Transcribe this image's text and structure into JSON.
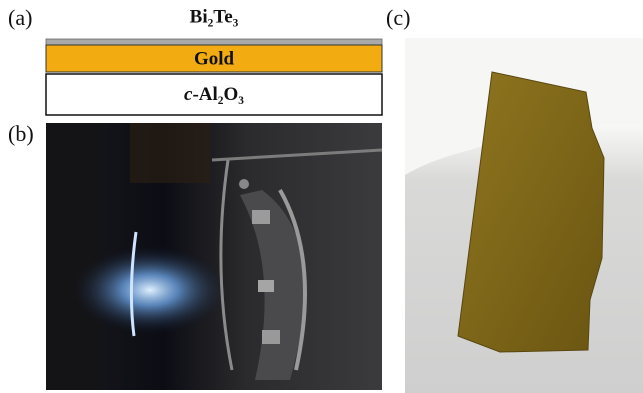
{
  "panels": {
    "a": "(a)",
    "b": "(b)",
    "c": "(c)"
  },
  "layers": {
    "top": "Bi₂Te₃",
    "middle": "Gold",
    "substrate_prefix": "c",
    "substrate_name": "-Al₂O₃"
  }
}
